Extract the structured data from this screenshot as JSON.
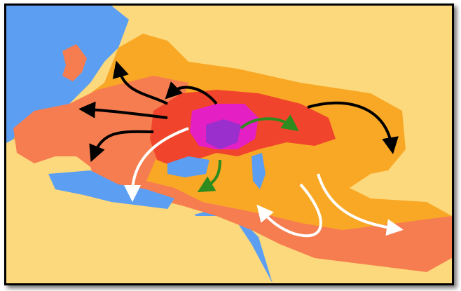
{
  "map": {
    "colors": {
      "sea": "#5c9ef2",
      "land": "#fcd97d",
      "outer_range": "#f9a825",
      "secondary_range": "#f67d50",
      "core_range": "#f0452c",
      "homeland": "#e41fc4",
      "homeland_center": "#9a2fce",
      "arrow_black": "#000000",
      "arrow_white": "#ffffff",
      "arrow_green": "#2e8b1e"
    },
    "arrow_groups": [
      "black",
      "white",
      "green"
    ]
  }
}
